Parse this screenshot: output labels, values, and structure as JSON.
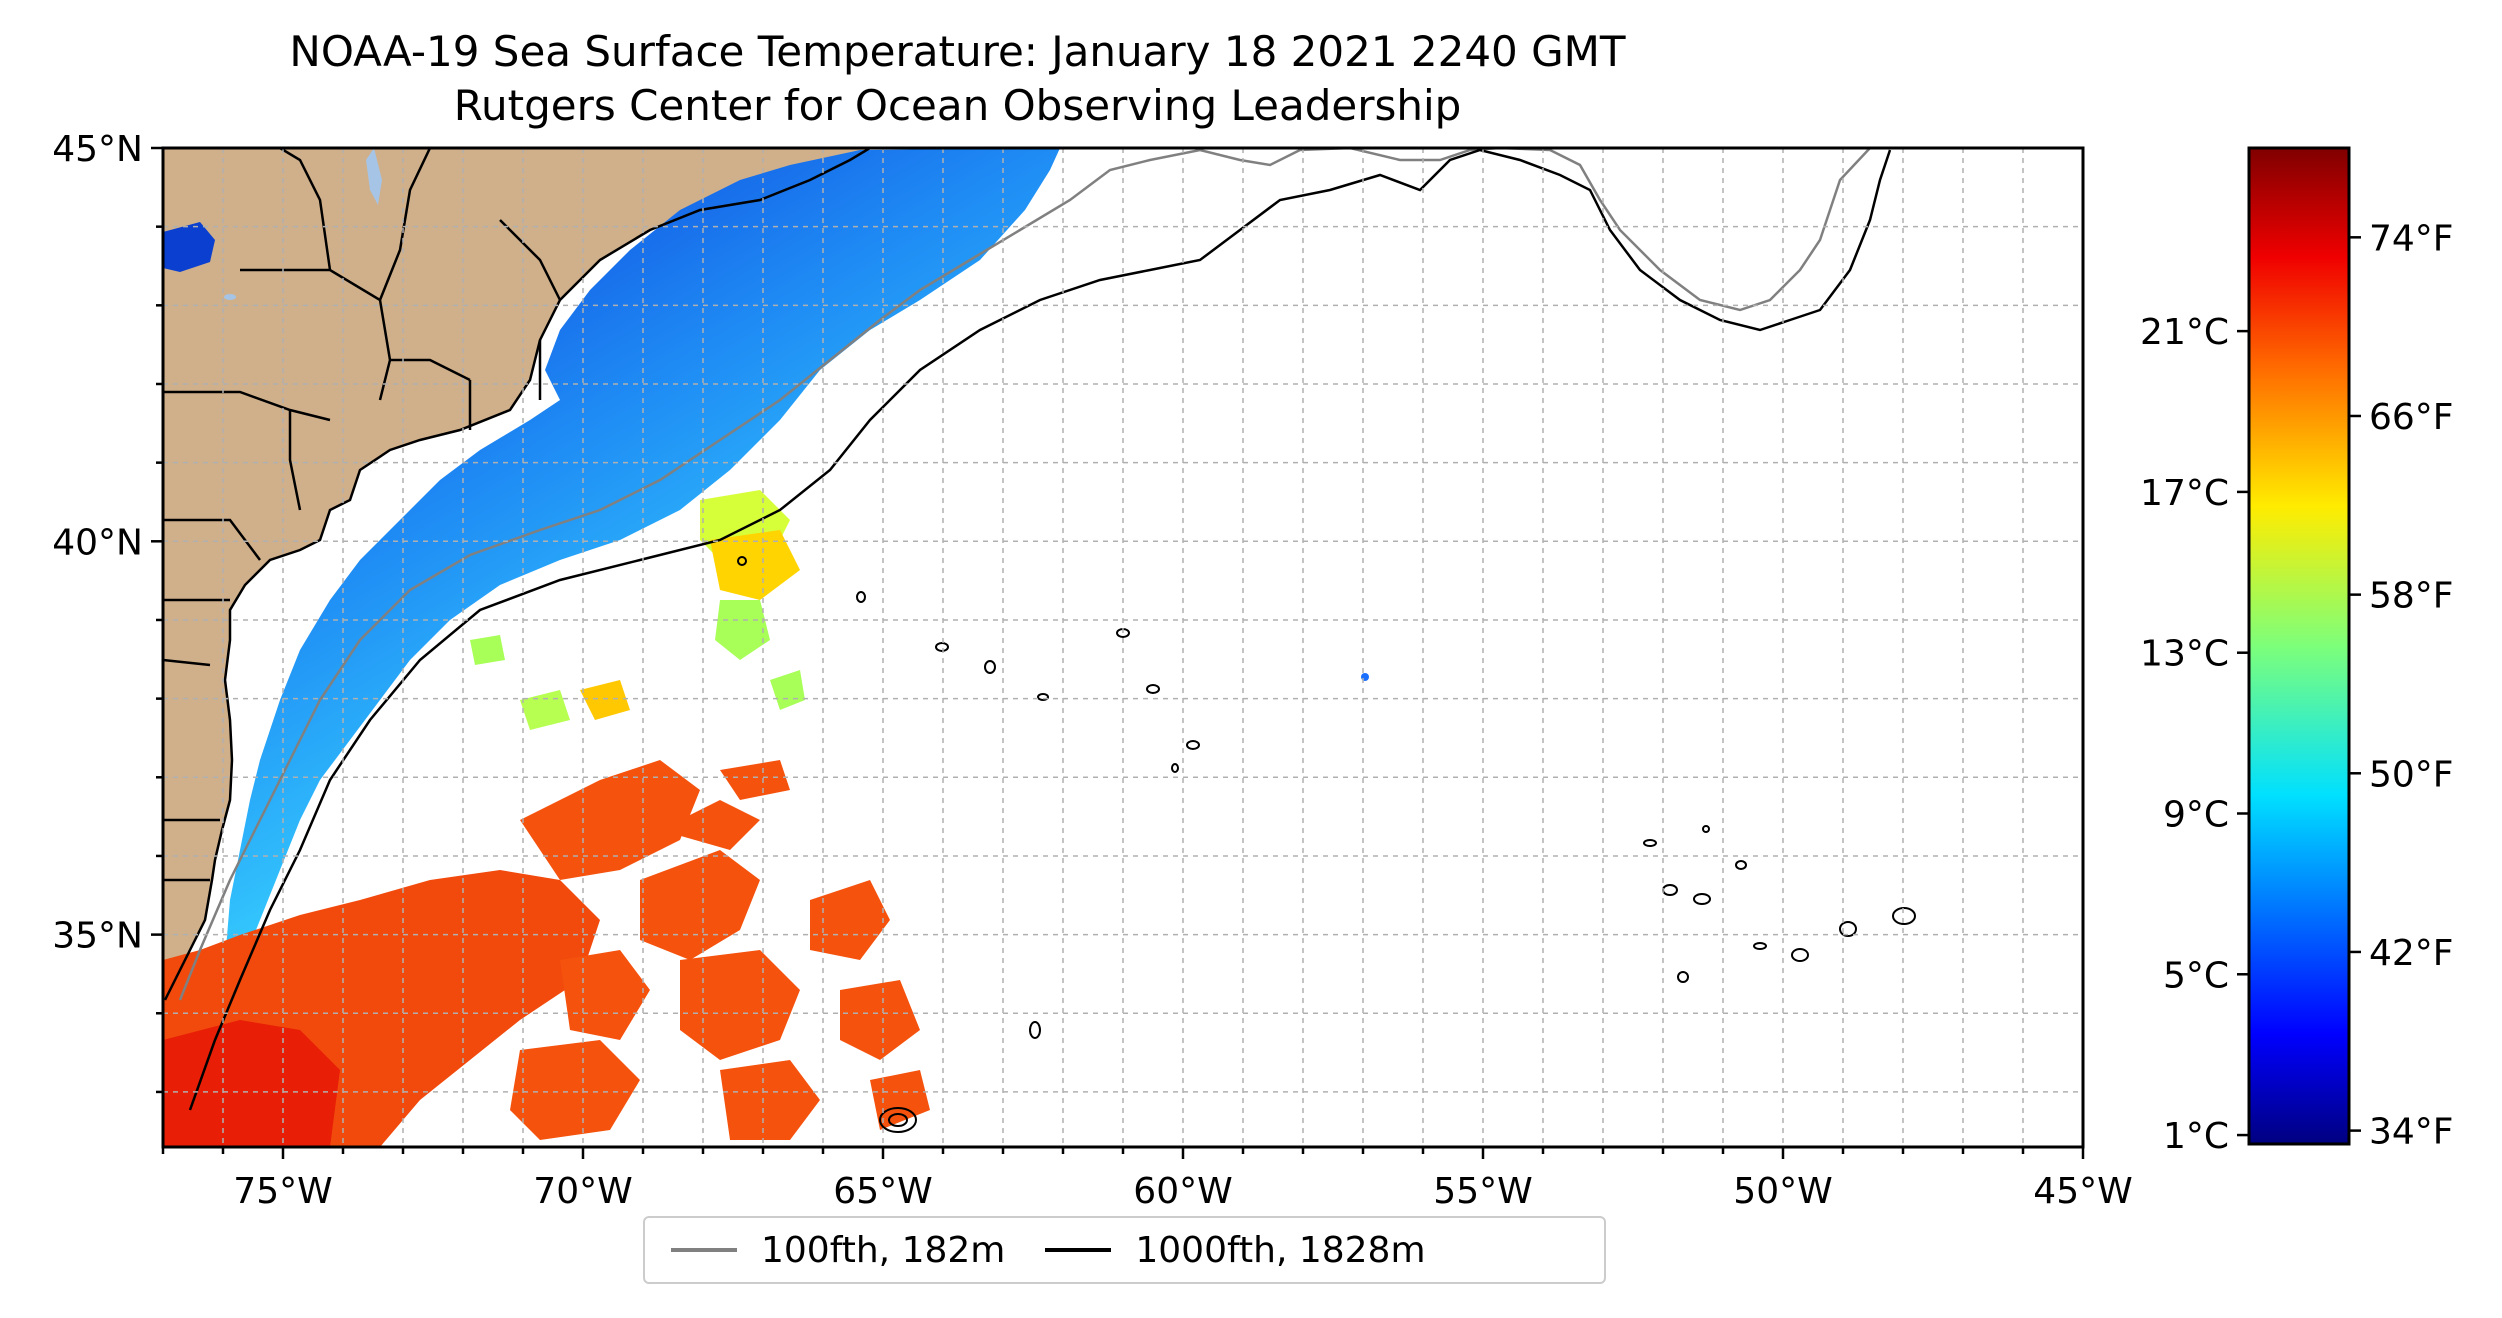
{
  "title_line1": "NOAA-19 Sea Surface Temperature: January 18 2021 2240 GMT",
  "title_line2": "Rutgers Center for Ocean Observing Leadership",
  "map": {
    "lon_range": [
      -77,
      -45
    ],
    "lat_range": [
      32.3,
      45
    ],
    "lon_ticks": [
      "75°W",
      "70°W",
      "65°W",
      "60°W",
      "55°W",
      "50°W",
      "45°W"
    ],
    "lat_ticks": [
      "45°N",
      "40°N",
      "35°N"
    ],
    "grid": true,
    "land_color": "#cfb08a",
    "coast_color": "#000000",
    "lake_color": "#a6c4e6"
  },
  "colorbar": {
    "colormap": "jet",
    "celsius_ticks": [
      "21°C",
      "17°C",
      "13°C",
      "9°C",
      "5°C",
      "1°C"
    ],
    "fahrenheit_ticks": [
      "74°F",
      "66°F",
      "58°F",
      "50°F",
      "42°F",
      "34°F"
    ]
  },
  "legend": {
    "items": [
      {
        "label": "100fth, 182m",
        "color": "#808080"
      },
      {
        "label": "1000fth, 1828m",
        "color": "#000000"
      }
    ]
  }
}
